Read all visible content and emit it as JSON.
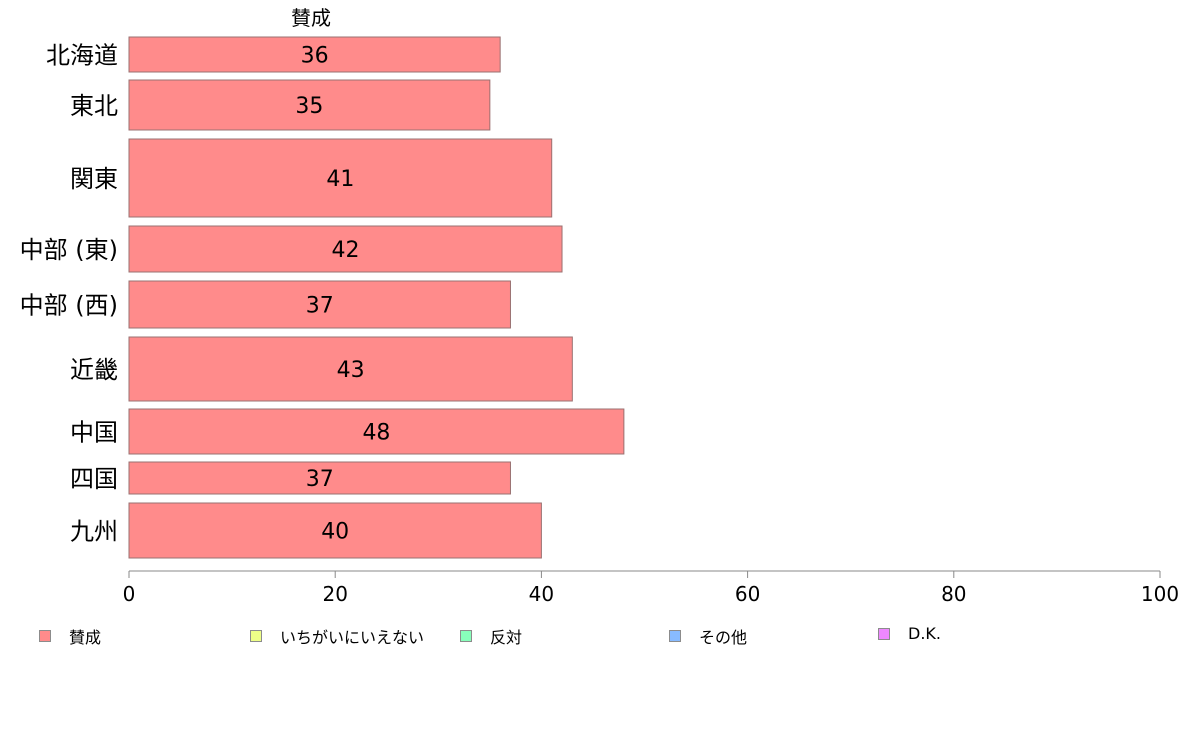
{
  "chart_data": {
    "type": "bar",
    "orientation": "horizontal",
    "series": [
      {
        "name": "賛成",
        "color": "#ff8b8b",
        "values": [
          36,
          35,
          41,
          42,
          37,
          43,
          48,
          37,
          40
        ]
      }
    ],
    "categories": [
      "北海道",
      "東北",
      "関東",
      "中部 (東)",
      "中部 (西)",
      "近畿",
      "中国",
      "四国",
      "九州"
    ],
    "data_labels": [
      "36",
      "35",
      "41",
      "42",
      "37",
      "43",
      "48",
      "37",
      "40"
    ],
    "column_title": "賛成",
    "xlim": [
      0,
      100
    ],
    "xticks": [
      0,
      20,
      40,
      60,
      80,
      100
    ],
    "xtick_labels": [
      "0",
      "20",
      "40",
      "60",
      "80",
      "100"
    ],
    "grid": false,
    "legend_position": "bottom"
  },
  "legend": {
    "items": [
      {
        "label": "賛成",
        "color": "#ff8b8b"
      },
      {
        "label": "いちがいにいえない",
        "color": "#eeff88"
      },
      {
        "label": "反対",
        "color": "#88ffbb"
      },
      {
        "label": "その他",
        "color": "#88bbff"
      },
      {
        "label": "D.K.",
        "color": "#ee88ff"
      }
    ]
  }
}
